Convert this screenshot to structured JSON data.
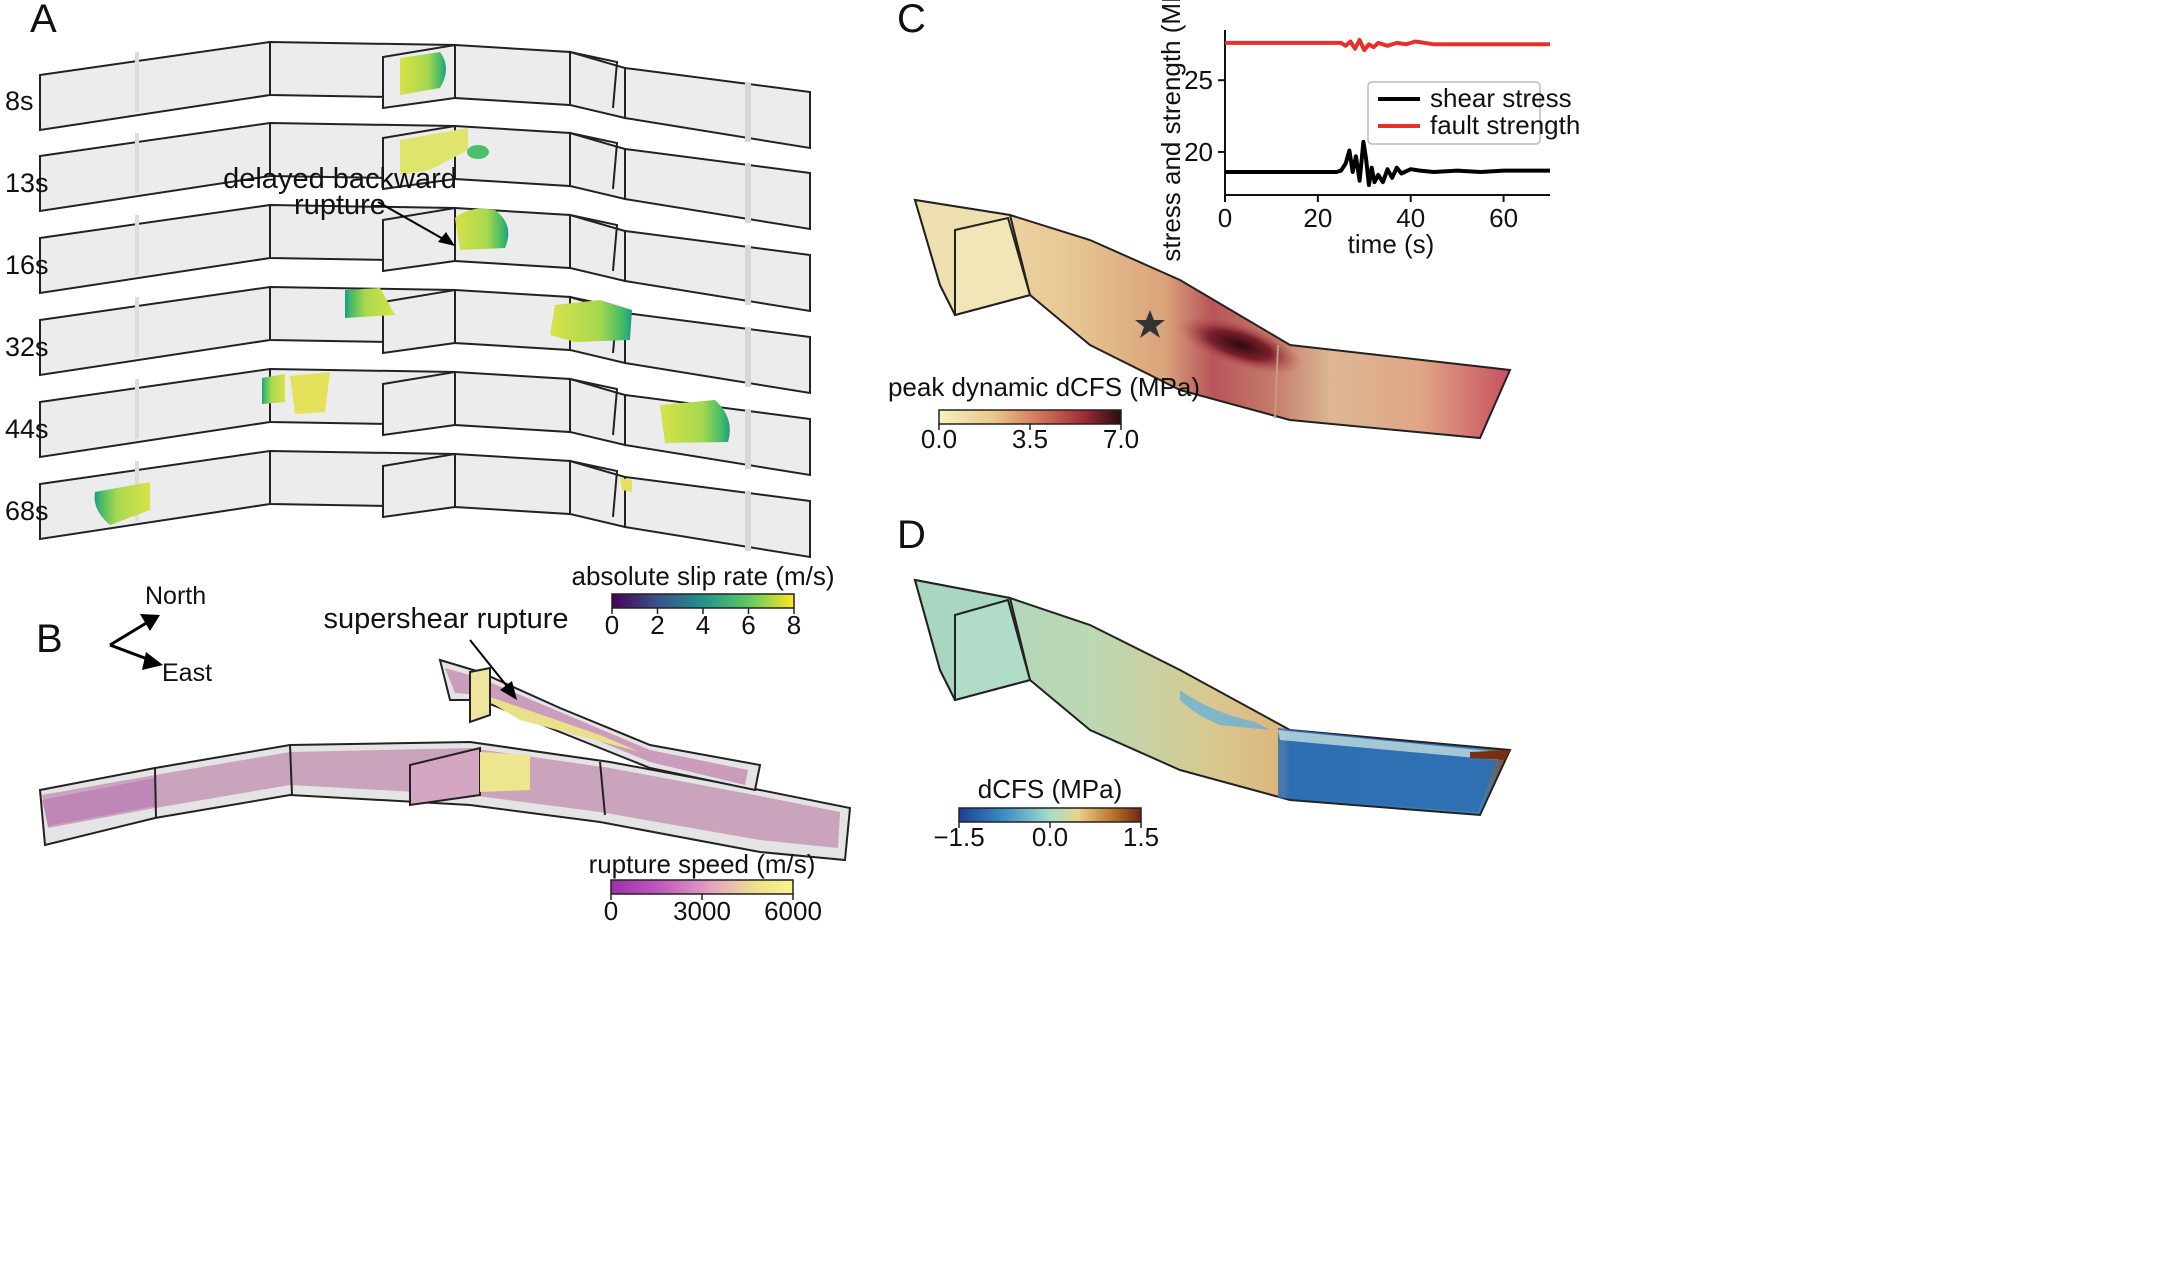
{
  "panels": {
    "a": "A",
    "b": "B",
    "c": "C",
    "d": "D"
  },
  "panel_a": {
    "snapshots": [
      "8s",
      "13s",
      "16s",
      "32s",
      "44s",
      "68s"
    ],
    "annotation_line1": "delayed backward",
    "annotation_line2": "rupture",
    "colorbar": {
      "title": "absolute slip rate (m/s)",
      "ticks": [
        "0",
        "2",
        "4",
        "6",
        "8"
      ],
      "colormap": "viridis"
    }
  },
  "panel_b": {
    "annotation": "supershear rupture",
    "compass_north": "North",
    "compass_east": "East",
    "colorbar": {
      "title": "rupture speed (m/s)",
      "ticks": [
        "0",
        "3000",
        "6000"
      ],
      "colormap": "purple-yellow"
    }
  },
  "panel_c": {
    "colorbar": {
      "title": "peak dynamic dCFS (MPa)",
      "ticks": [
        "0.0",
        "3.5",
        "7.0"
      ],
      "colormap": "yellow-red-black"
    }
  },
  "panel_d": {
    "colorbar": {
      "title": "dCFS (MPa)",
      "ticks": [
        "−1.5",
        "0.0",
        "1.5"
      ],
      "colormap": "blue-white-brown"
    }
  },
  "colors": {
    "shear_stress": "#000000",
    "fault_strength": "#e8302a",
    "viridis": [
      "#440154",
      "#3b528b",
      "#21918c",
      "#5ec962",
      "#fde725"
    ],
    "rupture_speed": [
      "#9b2fae",
      "#c75fc0",
      "#e3a3c0",
      "#f0e08a",
      "#f7f58a"
    ],
    "peak_dcfs": [
      "#f7f0c0",
      "#e8c888",
      "#d4765a",
      "#9b2b3a",
      "#2a0d0d"
    ],
    "dcfs": [
      "#1c3f94",
      "#3a8fc4",
      "#a6dccb",
      "#e8d490",
      "#b8702a",
      "#6a2a10"
    ]
  },
  "chart_data": {
    "type": "line",
    "xlabel": "time (s)",
    "ylabel": "stress and strength (MPa)",
    "xlim": [
      0,
      70
    ],
    "ylim": [
      17,
      28.5
    ],
    "xticks": [
      "0",
      "20",
      "40",
      "60"
    ],
    "yticks": [
      "20",
      "25"
    ],
    "legend_position": "upper-right",
    "series": [
      {
        "name": "shear stress",
        "x": [
          0,
          5,
          10,
          15,
          20,
          22,
          24,
          25,
          26,
          26.8,
          27.5,
          28.2,
          29,
          29.8,
          30.4,
          31,
          31.6,
          32.2,
          33,
          34,
          35,
          36,
          37,
          38,
          40,
          42,
          45,
          50,
          55,
          60,
          65,
          70
        ],
        "y": [
          18.6,
          18.6,
          18.6,
          18.6,
          18.6,
          18.6,
          18.6,
          18.7,
          19.2,
          20.1,
          18.6,
          19.7,
          18.0,
          20.7,
          19.5,
          17.7,
          18.9,
          17.9,
          18.4,
          17.9,
          18.8,
          18.2,
          18.9,
          18.5,
          18.8,
          18.7,
          18.6,
          18.7,
          18.6,
          18.7,
          18.7,
          18.7
        ]
      },
      {
        "name": "fault strength",
        "x": [
          0,
          5,
          10,
          15,
          20,
          23,
          25,
          26,
          27,
          28,
          29,
          30,
          31,
          32,
          33,
          35,
          37,
          39,
          41,
          45,
          50,
          55,
          60,
          65,
          70
        ],
        "y": [
          27.6,
          27.6,
          27.6,
          27.6,
          27.6,
          27.6,
          27.6,
          27.4,
          27.7,
          27.2,
          27.8,
          27.1,
          27.5,
          27.3,
          27.6,
          27.4,
          27.6,
          27.5,
          27.7,
          27.5,
          27.5,
          27.5,
          27.5,
          27.5,
          27.5
        ]
      }
    ]
  }
}
